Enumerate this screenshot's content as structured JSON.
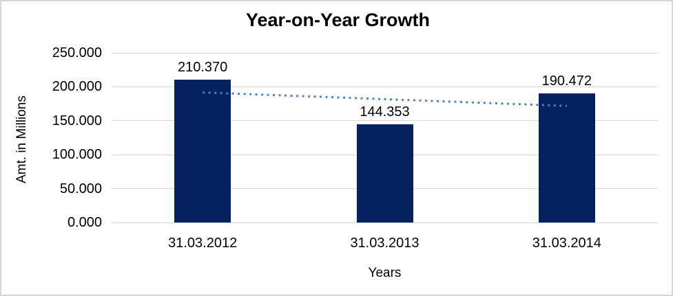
{
  "chart_data": {
    "type": "bar",
    "title": "Year-on-Year Growth",
    "xlabel": "Years",
    "ylabel": "Amt. in Millions",
    "categories": [
      "31.03.2012",
      "31.03.2013",
      "31.03.2014"
    ],
    "values": [
      210.37,
      144.353,
      190.472
    ],
    "value_labels": [
      "210.370",
      "144.353",
      "190.472"
    ],
    "ylim": [
      0,
      250
    ],
    "ytick_step": 50,
    "ytick_labels": [
      "0.000",
      "50.000",
      "100.000",
      "150.000",
      "200.000",
      "250.000"
    ],
    "grid": "horizontal",
    "legend": "none",
    "trendline": {
      "type": "linear",
      "style": "dotted",
      "start_value": 191.7,
      "end_value": 171.8
    },
    "colors": {
      "bar": "#052260",
      "trendline": "#4F81BD",
      "gridline": "#D9D9D9",
      "text": "#000000",
      "background": "#FFFFFF",
      "border": "#D6D6D6"
    }
  }
}
